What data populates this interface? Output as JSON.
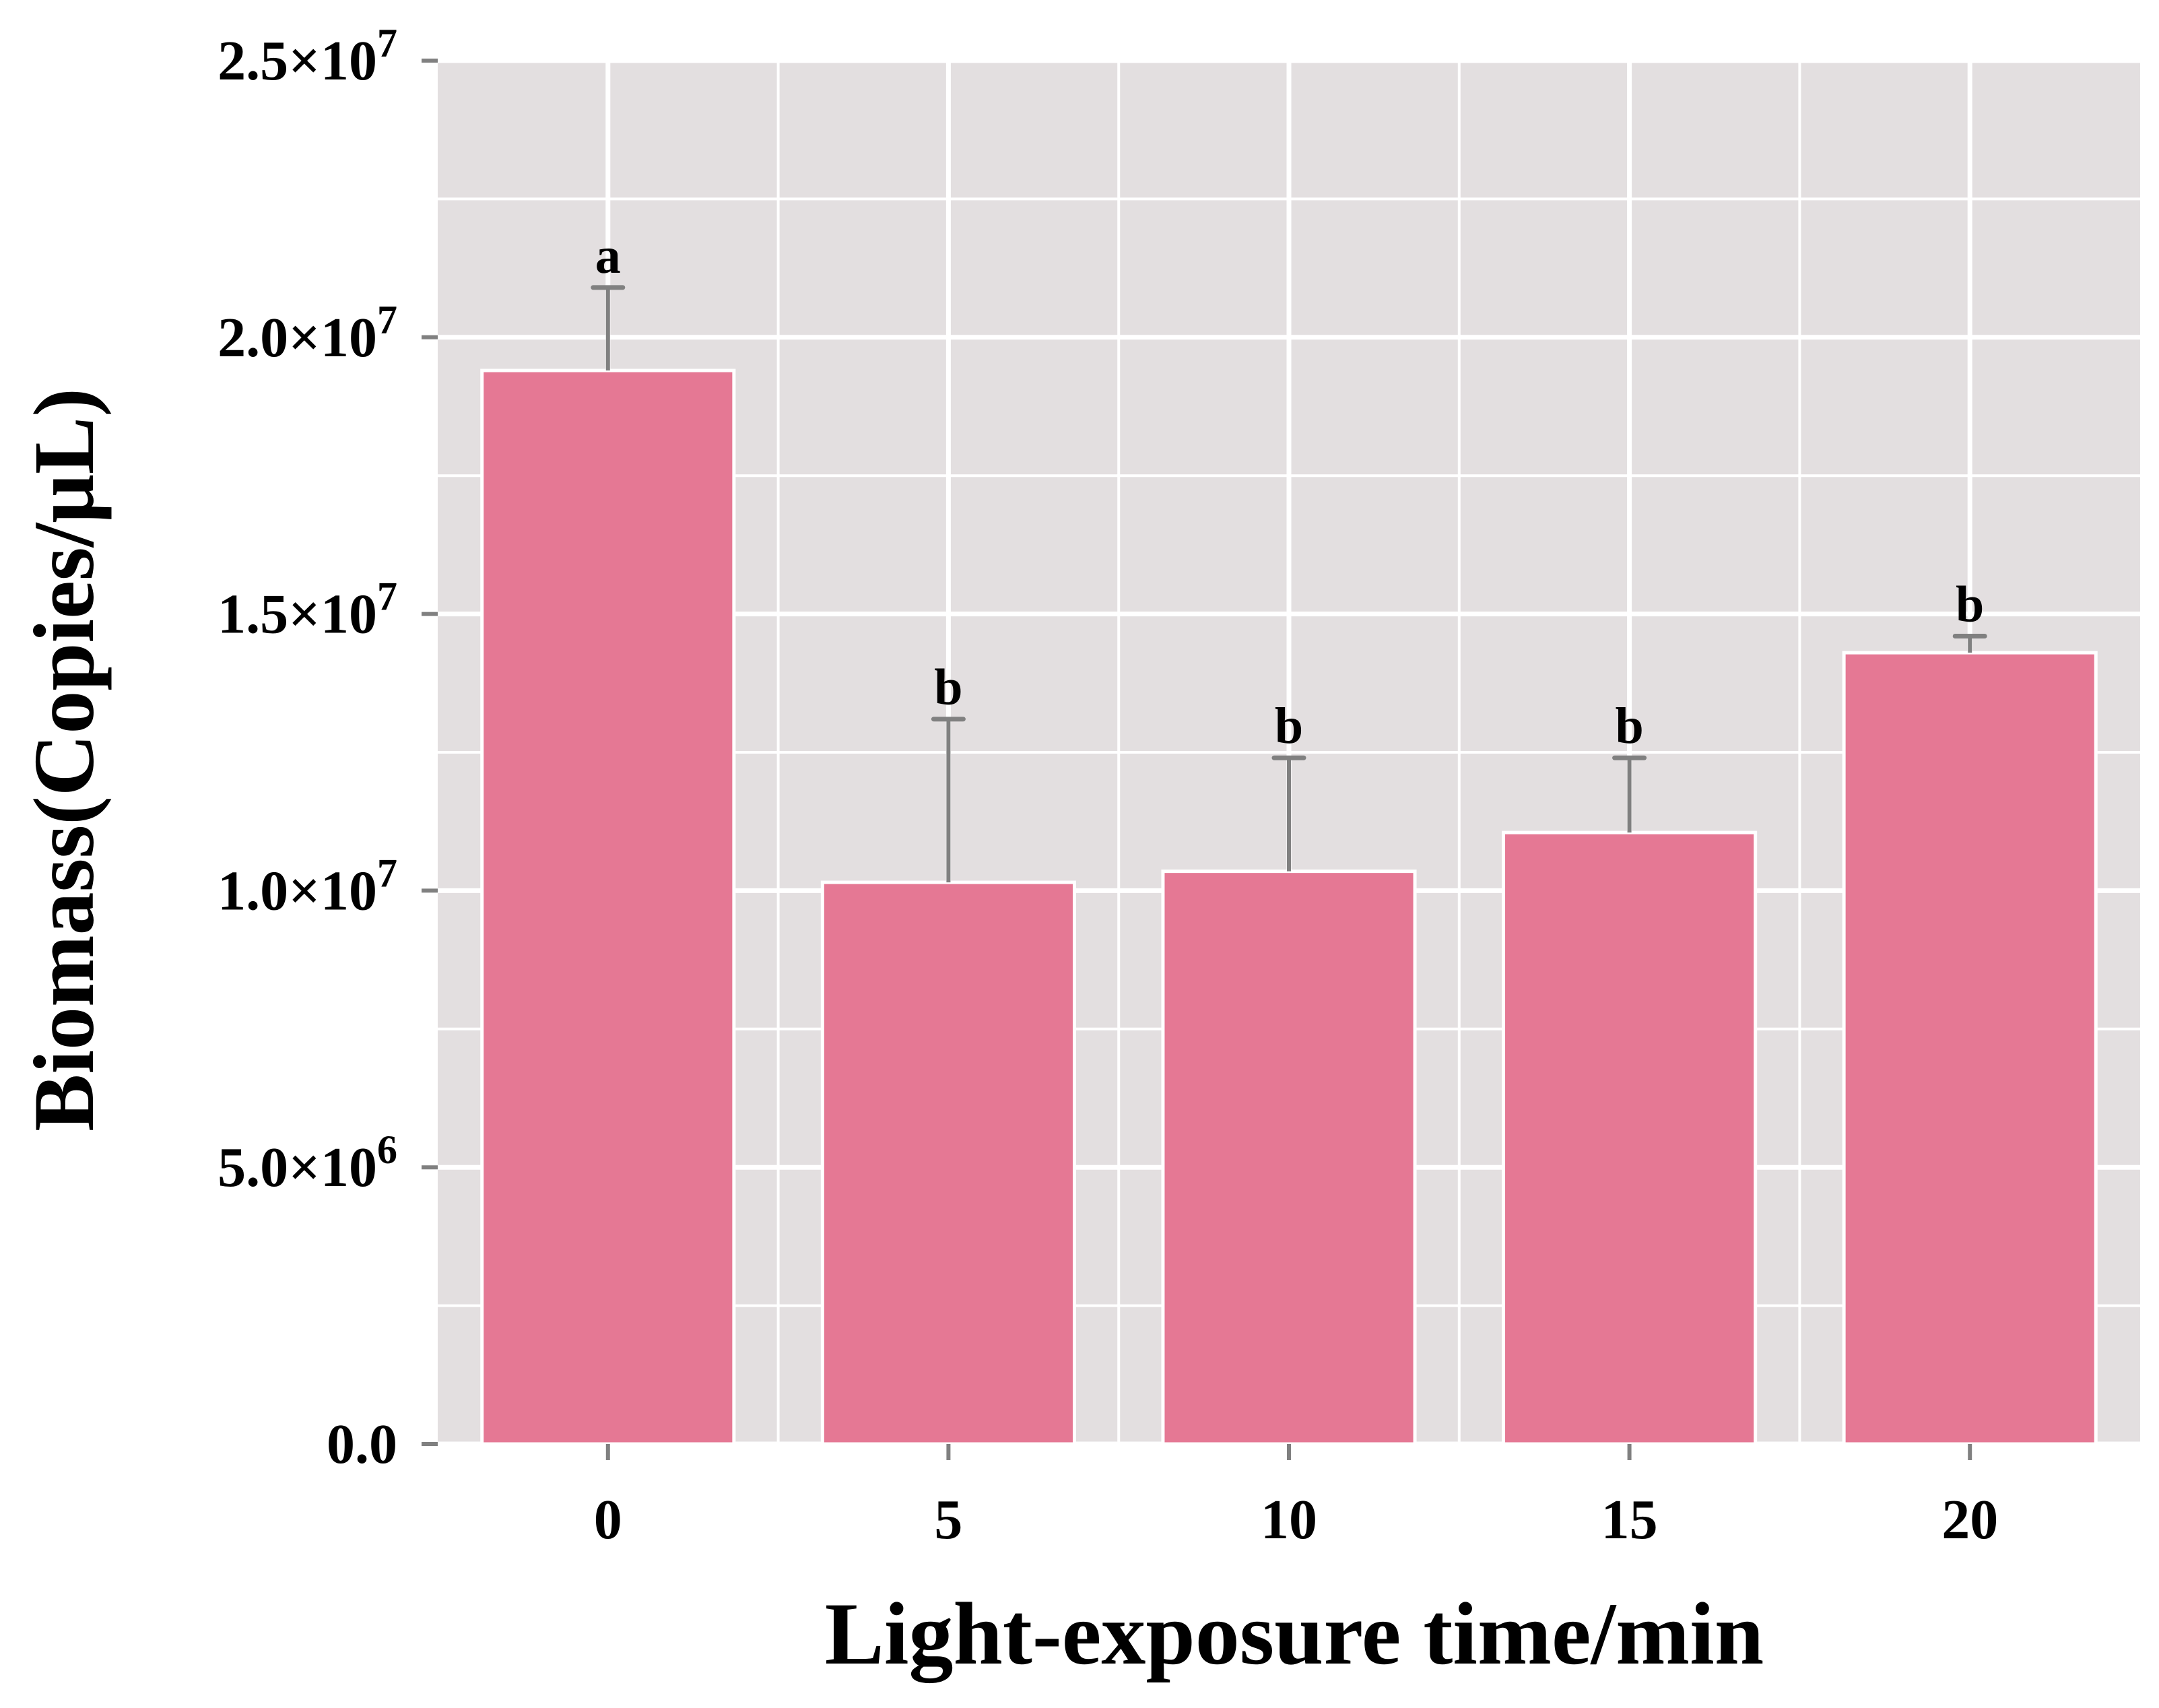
{
  "chart_data": {
    "type": "bar",
    "xlabel": "Light-exposure time/min",
    "ylabel": "Biomass(Copies/μL)",
    "categories": [
      "0",
      "5",
      "10",
      "15",
      "20"
    ],
    "values": [
      19400000,
      10150000,
      10350000,
      11050000,
      14300000
    ],
    "error_upper": [
      20900000,
      13100000,
      12400000,
      12400000,
      14600000
    ],
    "significance": [
      "a",
      "b",
      "b",
      "b",
      "b"
    ],
    "ylim": [
      0,
      25000000
    ],
    "y_ticks": [
      {
        "value": 0,
        "mantissa": "0.0",
        "exp": ""
      },
      {
        "value": 5000000,
        "mantissa": "5.0×10",
        "exp": "6"
      },
      {
        "value": 10000000,
        "mantissa": "1.0×10",
        "exp": "7"
      },
      {
        "value": 15000000,
        "mantissa": "1.5×10",
        "exp": "7"
      },
      {
        "value": 20000000,
        "mantissa": "2.0×10",
        "exp": "7"
      },
      {
        "value": 25000000,
        "mantissa": "2.5×10",
        "exp": "7"
      }
    ],
    "grid": true,
    "colors": {
      "bar": "#e57894",
      "panel": "#e3dfe0",
      "grid": "#ffffff",
      "error_bar": "#808080",
      "tick": "#808080"
    }
  }
}
